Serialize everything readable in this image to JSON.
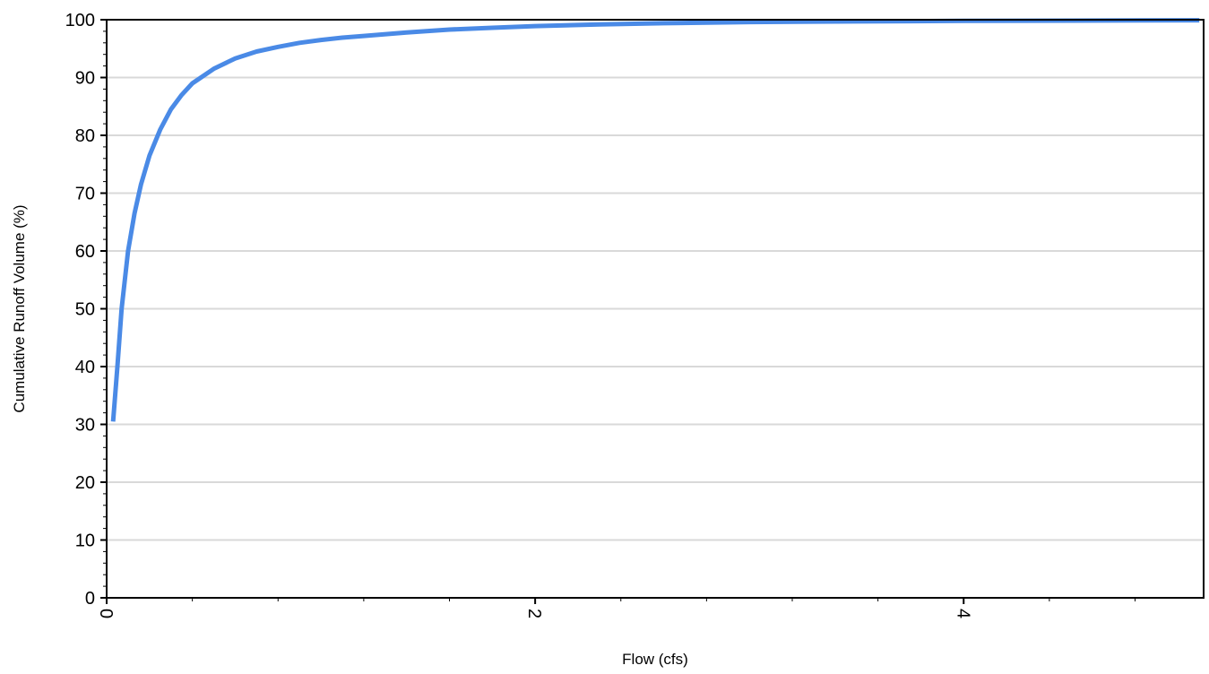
{
  "chart_data": {
    "type": "line",
    "title": "",
    "xlabel": "Flow (cfs)",
    "ylabel": "Cumulative Runoff Volume (%)",
    "xlim": [
      0,
      5.12
    ],
    "ylim": [
      0,
      100
    ],
    "x_ticks": [
      0,
      2,
      4
    ],
    "y_ticks": [
      0,
      10,
      20,
      30,
      40,
      50,
      60,
      70,
      80,
      90,
      100
    ],
    "grid": "horizontal",
    "legend": "none",
    "colors": {
      "line": "#4a8ae6",
      "grid": "#d9d9d9",
      "axis": "#000000"
    },
    "series": [
      {
        "x": [
          0.03,
          0.05,
          0.07,
          0.1,
          0.13,
          0.16,
          0.2,
          0.25,
          0.3,
          0.35,
          0.4,
          0.5,
          0.6,
          0.7,
          0.8,
          0.9,
          1.0,
          1.1,
          1.2,
          1.4,
          1.6,
          1.8,
          2.0,
          2.3,
          2.6,
          3.0,
          3.5,
          4.0,
          4.5,
          5.1
        ],
        "y": [
          30.5,
          40,
          50,
          60,
          66.5,
          71.5,
          76.5,
          81,
          84.5,
          87,
          89,
          91.5,
          93.3,
          94.5,
          95.3,
          96,
          96.5,
          96.9,
          97.2,
          97.8,
          98.3,
          98.6,
          98.9,
          99.2,
          99.4,
          99.6,
          99.7,
          99.8,
          99.85,
          99.9
        ]
      }
    ]
  }
}
